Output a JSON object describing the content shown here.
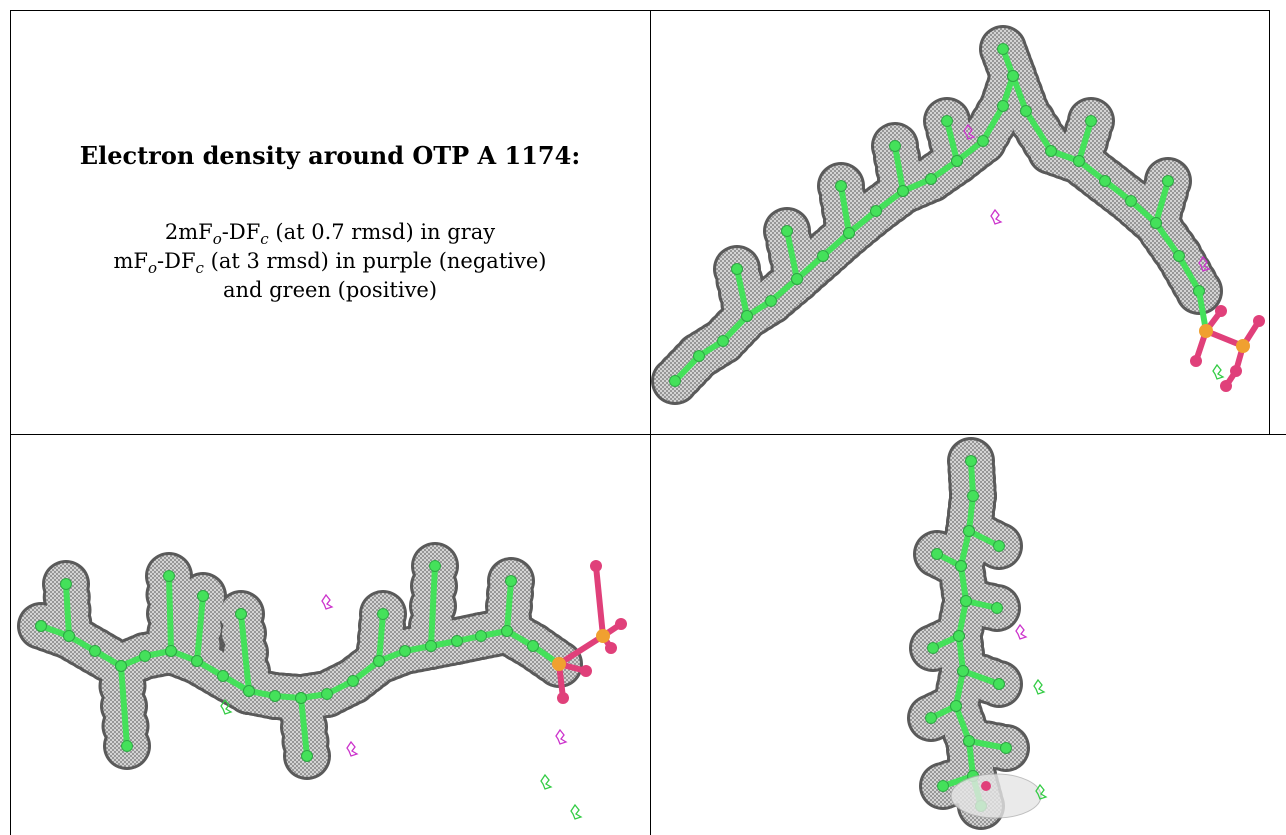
{
  "title": "Electron density around OTP A 1174:",
  "legend": {
    "line1": {
      "prefix": "2mF",
      "sub1": "o",
      "mid": "-DF",
      "sub2": "c",
      "suffix": " (at 0.7 rmsd) in gray"
    },
    "line2": {
      "prefix": "mF",
      "sub1": "o",
      "mid": "-DF",
      "sub2": "c",
      "suffix": " (at 3 rmsd) in purple (negative)"
    },
    "line3": "and green (positive)"
  },
  "colors": {
    "density_mesh": "#808080",
    "carbon_atoms": "#44e15a",
    "phosphorus_atoms": "#f0a030",
    "oxygen_atoms": "#e0407a",
    "negative_density": "#cc33cc",
    "positive_density": "#33cc44",
    "border": "#000000"
  },
  "panels": [
    {
      "view": "density-view-1"
    },
    {
      "view": "density-view-2"
    },
    {
      "view": "density-view-3"
    }
  ]
}
